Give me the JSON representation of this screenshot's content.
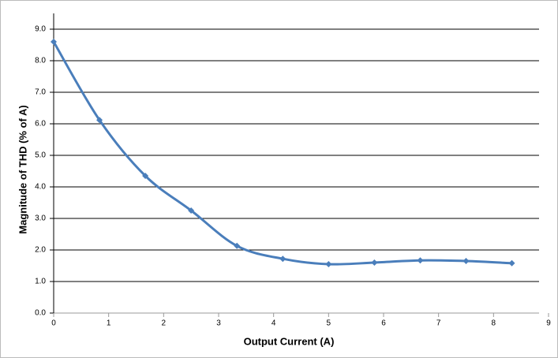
{
  "chart_data": {
    "type": "line",
    "x_label": "Output Current (A)",
    "y_label": "Magnitude of THD (% of A)",
    "x": [
      0,
      0.833,
      1.667,
      2.5,
      3.333,
      4.167,
      5,
      5.833,
      6.667,
      7.5,
      8.333
    ],
    "series": [
      {
        "color": "#4a7ebb",
        "values": [
          8.6,
          6.12,
          4.35,
          3.25,
          2.13,
          1.72,
          1.55,
          1.6,
          1.67,
          1.65,
          1.58
        ]
      }
    ],
    "xlim": [
      0,
      9
    ],
    "xticks": [
      0,
      1,
      2,
      3,
      4,
      5,
      6,
      7,
      8,
      9
    ],
    "ylim": [
      0,
      9
    ],
    "yticks": [
      {
        "value": 0,
        "label": "0.0"
      },
      {
        "value": 1,
        "label": "1.0"
      },
      {
        "value": 2,
        "label": "2.0"
      },
      {
        "value": 3,
        "label": "3.0"
      },
      {
        "value": 4,
        "label": "4.0"
      },
      {
        "value": 5,
        "label": "5.0"
      },
      {
        "value": 6,
        "label": "6.0"
      },
      {
        "value": 7,
        "label": "7.0"
      },
      {
        "value": 8,
        "label": "8.0"
      },
      {
        "value": 9,
        "label": "9.0"
      }
    ],
    "grid": true
  }
}
